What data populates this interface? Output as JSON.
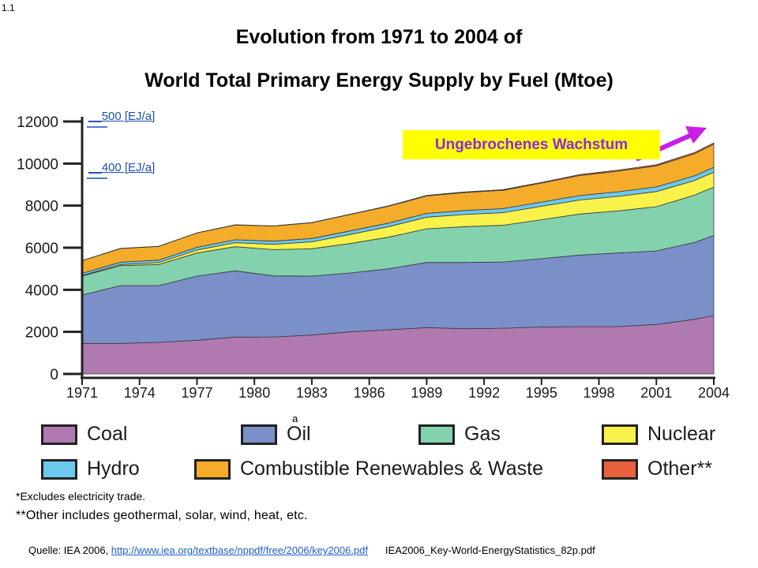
{
  "slide_number": "1.1",
  "title_line1": "Evolution from 1971 to 2004 of",
  "title_line2": "World Total Primary Energy Supply by Fuel (Mtoe)",
  "annotations": {
    "ej500": {
      "prefix": "__",
      "text": "500 [EJ/a]"
    },
    "ej400": {
      "prefix": "__",
      "text": "400 [EJ/a]"
    },
    "callout": "Ungebrochenes Wachstum",
    "stray_letter": "a"
  },
  "colors": {
    "coal": "#b07ab0",
    "oil": "#7b8fc9",
    "gas": "#84d2ad",
    "nuclear": "#f8f24a",
    "hydro": "#6cc8ec",
    "renewables": "#f4ac2a",
    "other": "#e8603c",
    "arrow": "#c81ee8",
    "callout_bg": "#ffff00",
    "callout_text": "#8a2be2"
  },
  "legend": [
    {
      "key": "coal",
      "label": "Coal"
    },
    {
      "key": "oil",
      "label": "Oil"
    },
    {
      "key": "gas",
      "label": "Gas"
    },
    {
      "key": "nuclear",
      "label": "Nuclear"
    },
    {
      "key": "hydro",
      "label": "Hydro"
    },
    {
      "key": "renewables",
      "label": "Combustible Renewables & Waste"
    },
    {
      "key": "other",
      "label": "Other**"
    }
  ],
  "notes": {
    "note1": "*Excludes electricity trade.",
    "note2": "**Other includes geothermal, solar, wind, heat, etc."
  },
  "source": {
    "prefix": "Quelle: IEA 2006, ",
    "url": "http://www.iea.org/textbase/nppdf/free/2006/key2006.pdf",
    "file": "IEA2006_Key-World-EnergyStatistics_82p.pdf"
  },
  "chart_data": {
    "type": "area",
    "stacked": true,
    "x": [
      1971,
      1973,
      1975,
      1977,
      1979,
      1981,
      1983,
      1985,
      1987,
      1989,
      1991,
      1993,
      1995,
      1997,
      1999,
      2001,
      2003,
      2004
    ],
    "x_ticks": [
      "1971",
      "1974",
      "1977",
      "1980",
      "1983",
      "1986",
      "1989",
      "1992",
      "1995",
      "1998",
      "2001",
      "2004"
    ],
    "y_ticks": [
      "0",
      "2000",
      "4000",
      "6000",
      "8000",
      "10000",
      "12000"
    ],
    "ylim": [
      0,
      12000
    ],
    "series": [
      {
        "key": "coal",
        "name": "Coal",
        "values": [
          1450,
          1450,
          1500,
          1600,
          1750,
          1760,
          1850,
          2000,
          2100,
          2200,
          2150,
          2170,
          2230,
          2250,
          2250,
          2350,
          2600,
          2780
        ]
      },
      {
        "key": "oil",
        "name": "Oil",
        "values": [
          2300,
          2750,
          2700,
          3050,
          3150,
          2900,
          2800,
          2800,
          2900,
          3100,
          3150,
          3150,
          3250,
          3400,
          3500,
          3500,
          3650,
          3800
        ]
      },
      {
        "key": "gas",
        "name": "Gas",
        "values": [
          900,
          950,
          1000,
          1100,
          1150,
          1250,
          1300,
          1400,
          1500,
          1600,
          1700,
          1750,
          1850,
          1950,
          2000,
          2100,
          2250,
          2300
        ]
      },
      {
        "key": "nuclear",
        "name": "Nuclear",
        "values": [
          30,
          50,
          90,
          140,
          190,
          250,
          330,
          430,
          500,
          550,
          580,
          600,
          640,
          670,
          690,
          720,
          700,
          710
        ]
      },
      {
        "key": "hydro",
        "name": "Hydro",
        "values": [
          100,
          110,
          120,
          130,
          140,
          150,
          160,
          170,
          170,
          180,
          190,
          190,
          200,
          210,
          220,
          220,
          220,
          230
        ]
      },
      {
        "key": "renewables",
        "name": "Combustible Renewables & Waste",
        "values": [
          600,
          650,
          650,
          680,
          700,
          720,
          750,
          780,
          800,
          830,
          850,
          870,
          900,
          950,
          980,
          1000,
          1050,
          1100
        ]
      },
      {
        "key": "other",
        "name": "Other**",
        "values": [
          10,
          10,
          10,
          10,
          10,
          10,
          10,
          15,
          20,
          25,
          30,
          35,
          40,
          45,
          50,
          55,
          60,
          65
        ]
      }
    ]
  }
}
